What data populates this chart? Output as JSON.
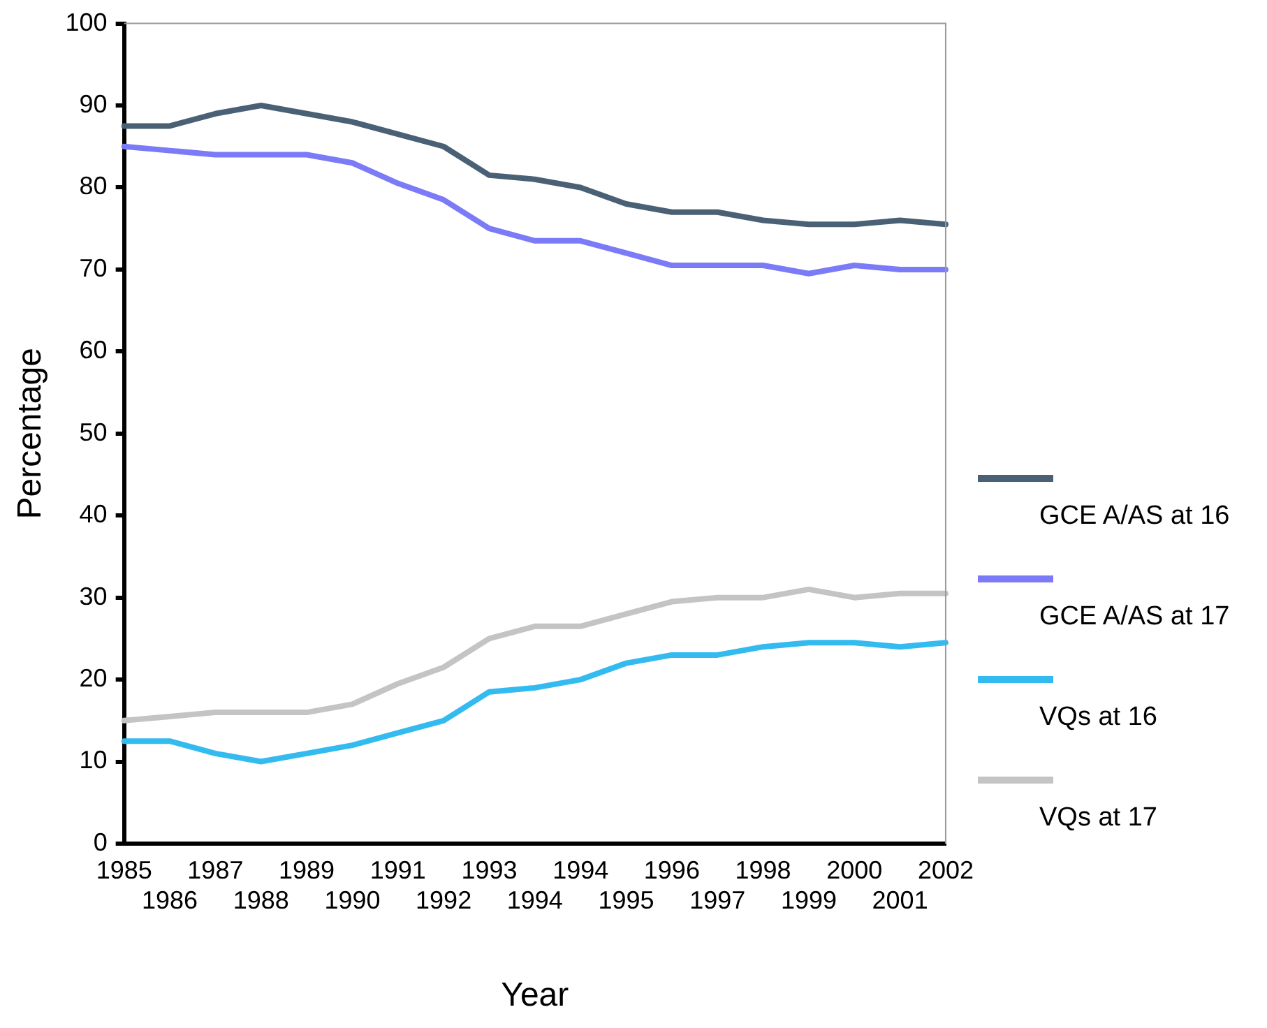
{
  "chart_data": {
    "type": "line",
    "xlabel": "Year",
    "ylabel": "Percentage",
    "categories": [
      "1985",
      "1986",
      "1987",
      "1988",
      "1989",
      "1990",
      "1991",
      "1992",
      "1993",
      "1994",
      "1994",
      "1995",
      "1996",
      "1997",
      "1998",
      "1999",
      "2000",
      "2001",
      "2002"
    ],
    "ylim": [
      0,
      100
    ],
    "yticks": [
      0,
      10,
      20,
      30,
      40,
      50,
      60,
      70,
      80,
      90,
      100
    ],
    "grid": false,
    "legend": "right",
    "marker": "none",
    "line_style": "solid",
    "series": [
      {
        "name": "GCE A/AS at 16",
        "color": "#4a6175",
        "values": [
          87.5,
          87.5,
          89,
          90,
          89,
          88,
          86.5,
          85,
          81.5,
          81,
          80,
          78,
          77,
          77,
          76,
          75.5,
          75.5,
          76,
          75.5
        ]
      },
      {
        "name": "GCE A/AS at 17",
        "color": "#7b7bf7",
        "values": [
          85,
          84.5,
          84,
          84,
          84,
          83,
          80.5,
          78.5,
          75,
          73.5,
          73.5,
          72,
          70.5,
          70.5,
          70.5,
          69.5,
          70.5,
          70,
          70
        ]
      },
      {
        "name": "VQs at 16",
        "color": "#33bbf0",
        "values": [
          12.5,
          12.5,
          11,
          10,
          11,
          12,
          13.5,
          15,
          18.5,
          19,
          20,
          22,
          23,
          23,
          24,
          24.5,
          24.5,
          24,
          24.5
        ]
      },
      {
        "name": "VQs at 17",
        "color": "#c4c4c4",
        "values": [
          15,
          15.5,
          16,
          16,
          16,
          17,
          19.5,
          21.5,
          25,
          26.5,
          26.5,
          28,
          29.5,
          30,
          30,
          31,
          30,
          30.5,
          30.5
        ]
      }
    ]
  }
}
